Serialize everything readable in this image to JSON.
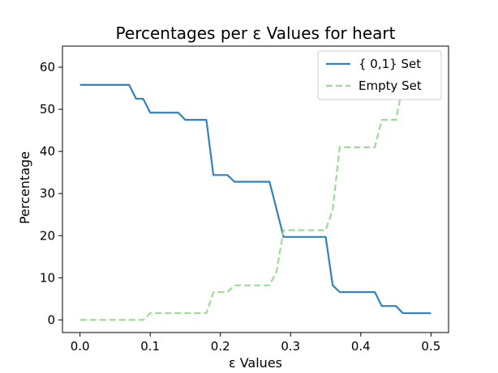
{
  "chart_data": {
    "type": "line",
    "title": "Percentages per ε Values for heart",
    "xlabel": "ε Values",
    "ylabel": "Percentage",
    "xlim": [
      -0.025,
      0.525
    ],
    "ylim": [
      -3,
      65
    ],
    "xticks": [
      "0.0",
      "0.1",
      "0.2",
      "0.3",
      "0.4",
      "0.5"
    ],
    "yticks": [
      "0",
      "10",
      "20",
      "30",
      "40",
      "50",
      "60"
    ],
    "grid": false,
    "legend_position": "top-right",
    "series": [
      {
        "name": "{ 0,1} Set",
        "color": "#3182bd",
        "style": "solid",
        "x": [
          0.0,
          0.07,
          0.08,
          0.09,
          0.1,
          0.14,
          0.15,
          0.18,
          0.19,
          0.21,
          0.22,
          0.27,
          0.29,
          0.35,
          0.36,
          0.37,
          0.42,
          0.43,
          0.45,
          0.46,
          0.5
        ],
        "y": [
          55.8,
          55.8,
          52.5,
          52.5,
          49.2,
          49.2,
          47.5,
          47.5,
          34.4,
          34.4,
          32.8,
          32.8,
          19.7,
          19.7,
          8.2,
          6.6,
          6.6,
          3.3,
          3.3,
          1.6,
          1.6
        ]
      },
      {
        "name": "Empty Set",
        "color": "#a1d99b",
        "style": "dashed",
        "x": [
          0.0,
          0.09,
          0.1,
          0.18,
          0.19,
          0.21,
          0.22,
          0.27,
          0.28,
          0.29,
          0.35,
          0.36,
          0.37,
          0.42,
          0.43,
          0.44,
          0.45,
          0.46
        ],
        "y": [
          0.0,
          0.0,
          1.6,
          1.6,
          6.6,
          6.6,
          8.2,
          8.2,
          11.5,
          21.3,
          21.3,
          26.2,
          41.0,
          41.0,
          47.5,
          47.5,
          47.5,
          55.7
        ]
      }
    ]
  }
}
